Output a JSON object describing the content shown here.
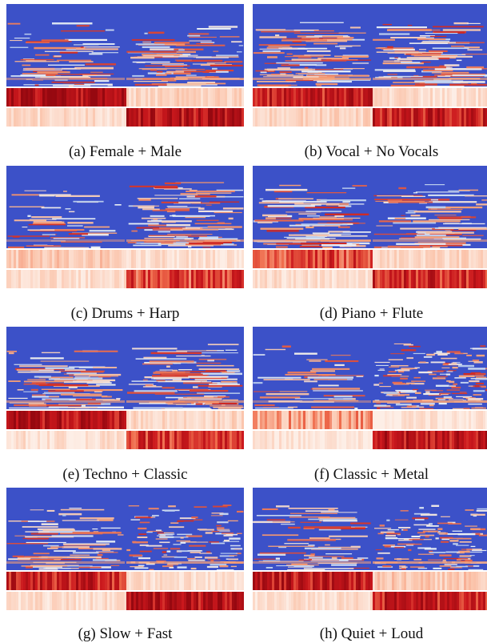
{
  "figure": {
    "panels": [
      {
        "id": "a",
        "caption": "(a) Female + Male"
      },
      {
        "id": "b",
        "caption": "(b) Vocal + No Vocals"
      },
      {
        "id": "c",
        "caption": "(c) Drums + Harp"
      },
      {
        "id": "d",
        "caption": "(d) Piano + Flute"
      },
      {
        "id": "e",
        "caption": "(e) Techno + Classic"
      },
      {
        "id": "f",
        "caption": "(f) Classic + Metal"
      },
      {
        "id": "g",
        "caption": "(g) Slow + Fast"
      },
      {
        "id": "h",
        "caption": "(h) Quiet + Loud"
      }
    ],
    "colors": {
      "spectrogram_background": "#3c51c8",
      "heatmap_low": "#fdeee6",
      "heatmap_high": "#b40d0d"
    }
  }
}
